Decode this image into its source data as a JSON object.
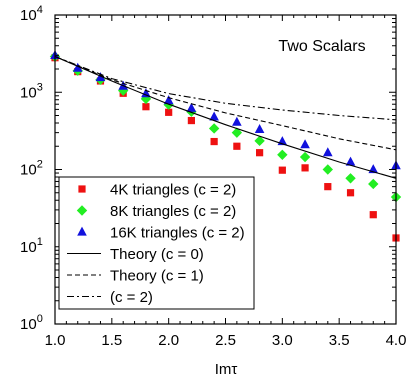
{
  "chart_data": {
    "type": "scatter",
    "title": "Two Scalars",
    "xlabel": "Imτ",
    "ylabel": "",
    "xlim": [
      1.0,
      4.0
    ],
    "ylim_log10": [
      0,
      4
    ],
    "yscale": "log",
    "grid": false,
    "legend_position": "bottom-left",
    "x_ticks": [
      "1.0",
      "1.5",
      "2.0",
      "2.5",
      "3.0",
      "3.5",
      "4.0"
    ],
    "x_tick_values": [
      1.0,
      1.5,
      2.0,
      2.5,
      3.0,
      3.5,
      4.0
    ],
    "y_ticks": [
      {
        "base": "10",
        "exp": "0",
        "value": 1
      },
      {
        "base": "10",
        "exp": "1",
        "value": 10
      },
      {
        "base": "10",
        "exp": "2",
        "value": 100
      },
      {
        "base": "10",
        "exp": "3",
        "value": 1000
      },
      {
        "base": "10",
        "exp": "4",
        "value": 10000
      }
    ],
    "series": [
      {
        "name": "4K triangles (c = 2)",
        "marker": "square",
        "color": "#ee1111",
        "points": [
          [
            1.0,
            2800
          ],
          [
            1.2,
            1850
          ],
          [
            1.4,
            1400
          ],
          [
            1.6,
            970
          ],
          [
            1.8,
            650
          ],
          [
            2.0,
            550
          ],
          [
            2.2,
            430
          ],
          [
            2.4,
            230
          ],
          [
            2.6,
            200
          ],
          [
            2.8,
            165
          ],
          [
            3.0,
            98
          ],
          [
            3.2,
            105
          ],
          [
            3.4,
            60
          ],
          [
            3.6,
            50
          ],
          [
            3.8,
            26
          ],
          [
            4.0,
            13
          ]
        ]
      },
      {
        "name": "8K triangles (c = 2)",
        "marker": "diamond",
        "color": "#22ee22",
        "points": [
          [
            1.0,
            2900
          ],
          [
            1.2,
            1900
          ],
          [
            1.4,
            1450
          ],
          [
            1.6,
            1050
          ],
          [
            1.8,
            820
          ],
          [
            2.0,
            690
          ],
          [
            2.2,
            560
          ],
          [
            2.4,
            340
          ],
          [
            2.6,
            300
          ],
          [
            2.8,
            235
          ],
          [
            3.0,
            155
          ],
          [
            3.2,
            145
          ],
          [
            3.4,
            100
          ],
          [
            3.6,
            77
          ],
          [
            3.8,
            65
          ],
          [
            4.0,
            44
          ]
        ]
      },
      {
        "name": "16K triangles (c = 2)",
        "marker": "triangle",
        "color": "#1111dd",
        "points": [
          [
            1.0,
            3000
          ],
          [
            1.2,
            2050
          ],
          [
            1.4,
            1550
          ],
          [
            1.6,
            1200
          ],
          [
            1.8,
            960
          ],
          [
            2.0,
            780
          ],
          [
            2.2,
            620
          ],
          [
            2.4,
            480
          ],
          [
            2.6,
            410
          ],
          [
            2.8,
            330
          ],
          [
            3.0,
            230
          ],
          [
            3.2,
            210
          ],
          [
            3.4,
            165
          ],
          [
            3.6,
            125
          ],
          [
            3.8,
            100
          ],
          [
            4.0,
            112
          ]
        ]
      },
      {
        "name": "Theory (c = 0)",
        "line": "solid",
        "color": "#000000",
        "x": [
          1.0,
          1.5,
          2.0,
          2.5,
          3.0,
          3.5,
          4.0
        ],
        "y": [
          2900,
          1400,
          700,
          380,
          215,
          125,
          77
        ]
      },
      {
        "name": "Theory (c = 1)",
        "line": "dashed",
        "color": "#000000",
        "x": [
          1.0,
          1.5,
          2.0,
          2.5,
          3.0,
          3.5,
          4.0
        ],
        "y": [
          2900,
          1450,
          850,
          540,
          370,
          250,
          180
        ]
      },
      {
        "name": "(c = 2)",
        "line": "dashdot",
        "color": "#000000",
        "x": [
          1.0,
          1.5,
          2.0,
          2.5,
          3.0,
          3.5,
          4.0
        ],
        "y": [
          2900,
          1500,
          960,
          720,
          590,
          500,
          440
        ]
      }
    ]
  }
}
